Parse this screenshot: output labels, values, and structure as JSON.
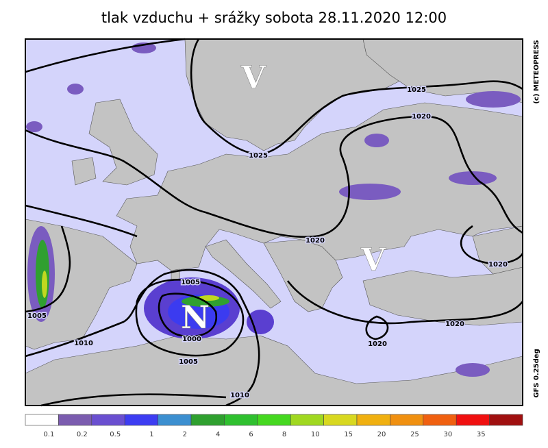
{
  "title": "tlak vzduchu + srážky  sobota 28.11.2020 12:00",
  "credit": "(c) METEOPRESS",
  "model": "GFS 0.25deg",
  "centers": [
    {
      "label": "V"
    },
    {
      "label": "V"
    },
    {
      "label": "N"
    }
  ],
  "isobar_labels": [
    "1025",
    "1025",
    "1020",
    "1020",
    "1020",
    "1020",
    "1020",
    "1005",
    "1005",
    "1000",
    "1005",
    "1010",
    "1010"
  ],
  "colorbar": {
    "colors": [
      "#ffffff",
      "#7b5caf",
      "#6a4fd0",
      "#3d3df2",
      "#3c8fd0",
      "#2fa02f",
      "#2fc02f",
      "#45d820",
      "#a0d820",
      "#d8d820",
      "#f0b010",
      "#f09010",
      "#f06010",
      "#f01010",
      "#a01010"
    ],
    "labels": [
      "0.1",
      "0.2",
      "0.5",
      "1",
      "2",
      "4",
      "6",
      "8",
      "10",
      "15",
      "20",
      "25",
      "30",
      "35"
    ]
  }
}
